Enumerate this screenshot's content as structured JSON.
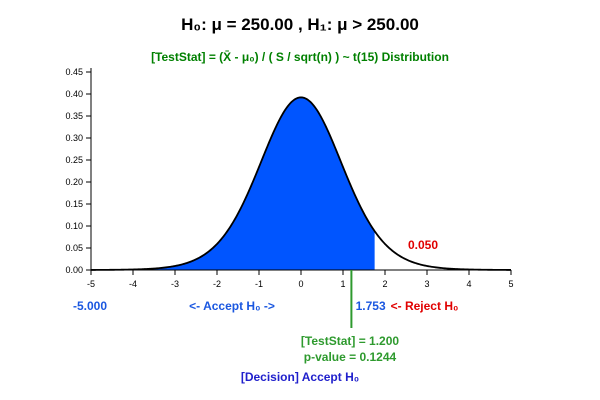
{
  "chart_data": {
    "type": "area",
    "title": "H₀: μ = 250.00 , H₁: μ > 250.00",
    "subtitle": "[TestStat] = (X̄ - μ₀) / ( S / sqrt(n) ) ~ t(15) Distribution",
    "distribution": "t",
    "df": 15,
    "xlim": [
      -5,
      5
    ],
    "ylim": [
      0,
      0.45
    ],
    "x_ticks": [
      "-5",
      "-4",
      "-3",
      "-2",
      "-1",
      "0",
      "1",
      "2",
      "3",
      "4",
      "5"
    ],
    "y_ticks": [
      "0.00",
      "0.05",
      "0.10",
      "0.15",
      "0.20",
      "0.25",
      "0.30",
      "0.35",
      "0.40",
      "0.45"
    ],
    "acceptance_region": [
      -5.0,
      1.753
    ],
    "critical_value": 1.753,
    "alpha": 0.05,
    "test_stat": 1.2,
    "p_value": 0.1244,
    "grid": false,
    "colors": {
      "title": "#000000",
      "subtitle": "#008000",
      "accept_fill": "#0055ff",
      "accept_text": "#1a57e0",
      "reject_text": "#e00000",
      "teststat": "#2e9a2e",
      "decision": "#2020cc"
    },
    "labels": {
      "left_bound": "-5.000",
      "accept": "<- Accept H₀ ->",
      "crit_value": "1.753",
      "reject": "<- Reject H₀",
      "alpha": "0.050",
      "teststat": "[TestStat] = 1.200",
      "pvalue": "p-value = 0.1244",
      "decision": "[Decision] Accept H₀"
    }
  }
}
